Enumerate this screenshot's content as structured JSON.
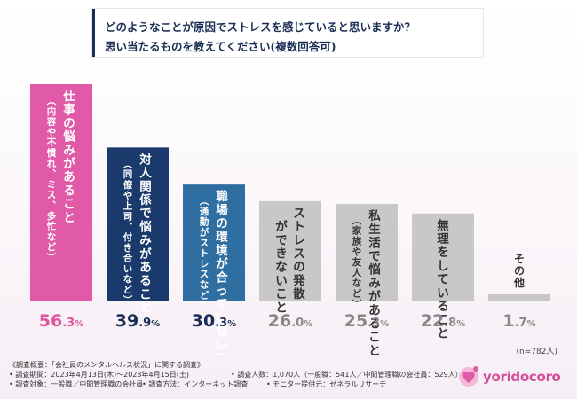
{
  "title": {
    "line1": "どのようなことが原因でストレスを感じていると思いますか？",
    "line2": "思い当たるものを教えてください(複数回答可)"
  },
  "chart_data": {
    "type": "bar",
    "title": "どのようなことが原因でストレスを感じていると思いますか？ 思い当たるものを教えてください(複数回答可)",
    "categories": [
      "仕事の悩みがあること（内容や不慣れ、ミス、多忙など）",
      "対人関係で悩みがあること（同僚や上司、付き合いなど）",
      "職場の環境が合っていないこと（通勤がストレスなど）",
      "ストレスの発散ができないこと",
      "私生活で悩みがあること（家族や友人など）",
      "無理をしていること",
      "その他"
    ],
    "values": [
      56.3,
      39.9,
      30.3,
      26.0,
      25.3,
      22.8,
      1.7
    ],
    "unit": "%",
    "ylim": [
      0,
      60
    ],
    "grid": false,
    "bars": [
      {
        "main": "仕事の悩みがあること",
        "sub": "（内容や不慣れ、ミス、多忙など）",
        "int": "56",
        "dec": ".3",
        "pct": "%"
      },
      {
        "main": "対人関係で悩みがあること",
        "sub": "（同僚や上司、付き合いなど）",
        "int": "39",
        "dec": ".9",
        "pct": "%"
      },
      {
        "main": "職場の環境が合っていないこと",
        "sub": "（通勤がストレスなど）",
        "int": "30",
        "dec": ".3",
        "pct": "%"
      },
      {
        "main": "ストレスの発散",
        "main2": "ができないこと",
        "sub": "",
        "int": "26",
        "dec": ".0",
        "pct": "%"
      },
      {
        "main": "私生活で悩みがあること",
        "sub": "（家族や友人など）",
        "int": "25",
        "dec": ".3",
        "pct": "%"
      },
      {
        "main": "無理をしていること",
        "sub": "",
        "int": "22",
        "dec": ".8",
        "pct": "%"
      },
      {
        "main": "その他",
        "sub": "",
        "int": "1",
        "dec": ".7",
        "pct": "%"
      }
    ],
    "colors": {
      "pink": "#e05aa8",
      "navy": "#1a3a6b",
      "blue": "#2f6ea0",
      "gray": "#c8c8c8",
      "label_pink": "#e0559f",
      "label_navy": "#1a2e55",
      "label_gray": "#888888"
    },
    "bar_colors": [
      "pink",
      "navy",
      "blue",
      "gray",
      "gray",
      "gray",
      "gray"
    ],
    "label_colors": [
      "label_pink",
      "label_navy",
      "label_navy",
      "label_gray",
      "label_gray",
      "label_gray",
      "label_gray"
    ]
  },
  "n_label": "(n=782人)",
  "footer": {
    "l1": "《調査概要：「会社員のメンタルヘルス状況」に関する調査》",
    "l2a": "• 調査期間：2023年4月13日(木)〜2023年4月15日(土)",
    "l2b": "• 調査人数：1,070人（一般職：541人／中間管理職の会社員：529人）",
    "l3a": "• 調査対象：一般職／中間管理職の会社員",
    "l3b": "• 調査方法：インターネット調査",
    "l3c": "• モニター提供元：ゼネラルリサーチ"
  },
  "logo": {
    "text": "yoridocoro",
    "icon": "logo-heart-icon"
  }
}
